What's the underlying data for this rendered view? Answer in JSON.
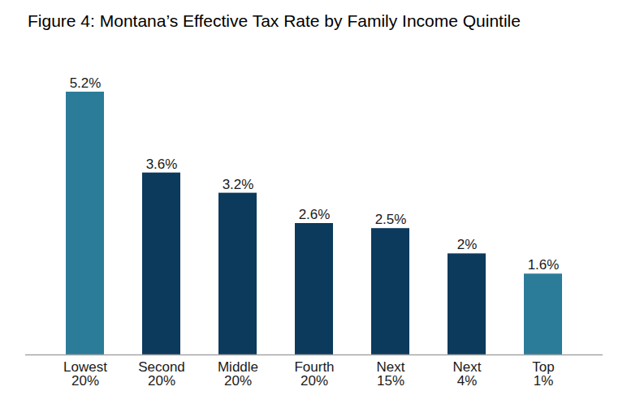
{
  "chart_data": {
    "type": "bar",
    "title": "Figure 4: Montana’s Effective Tax Rate by Family Income Quintile",
    "categories": [
      "Lowest\n20%",
      "Second\n20%",
      "Middle\n20%",
      "Fourth\n20%",
      "Next\n15%",
      "Next\n4%",
      "Top\n1%"
    ],
    "values": [
      5.2,
      3.6,
      3.2,
      2.6,
      2.5,
      2,
      1.6
    ],
    "value_labels": [
      "5.2%",
      "3.6%",
      "3.2%",
      "2.6%",
      "2.5%",
      "2%",
      "1.6%"
    ],
    "colors": [
      "#2b7c98",
      "#0c3a5c",
      "#0c3a5c",
      "#0c3a5c",
      "#0c3a5c",
      "#0c3a5c",
      "#2b7c98"
    ],
    "ylim": [
      0,
      5.2
    ],
    "data_labels": true,
    "tick_labels": "x",
    "grid": false
  }
}
